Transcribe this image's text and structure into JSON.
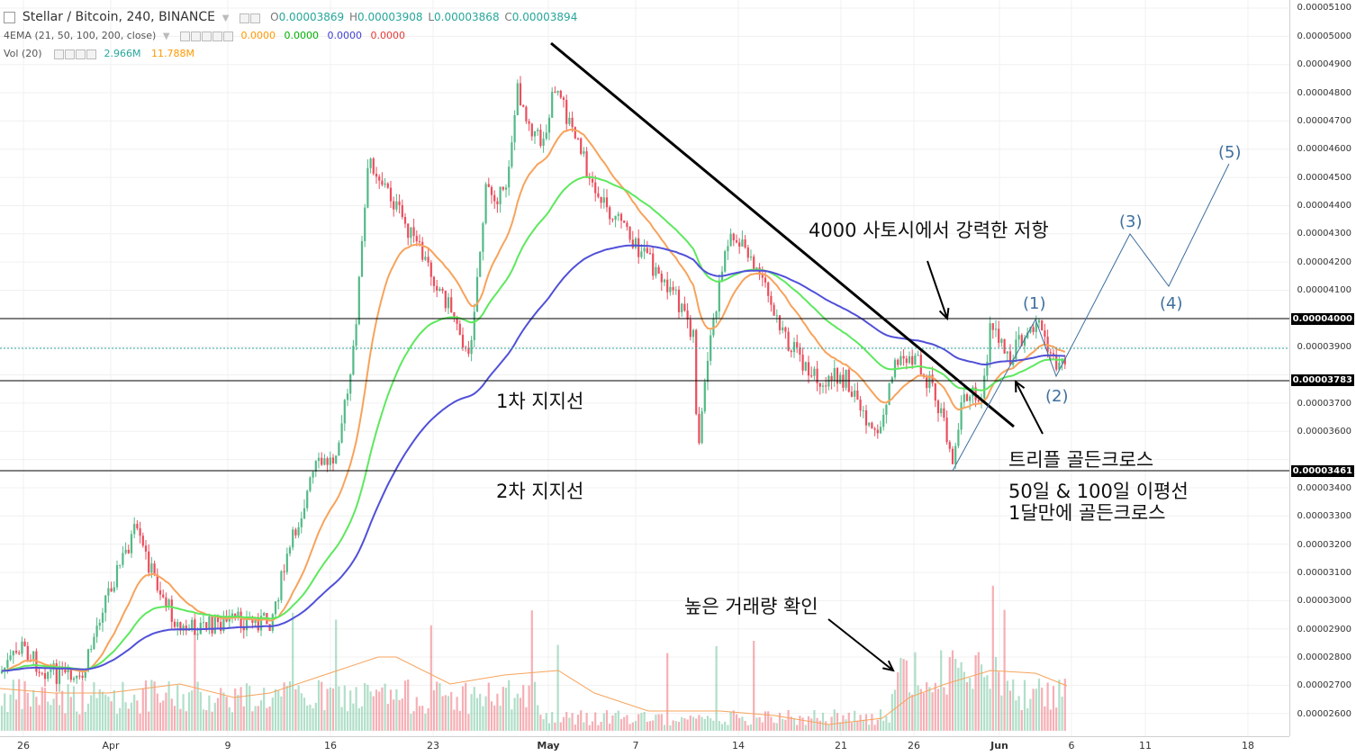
{
  "legend": {
    "symbol": "Stellar / Bitcoin, 240, BINANCE",
    "ohlc": [
      {
        "k": "O",
        "v": "0.00003869"
      },
      {
        "k": "H",
        "v": "0.00003908"
      },
      {
        "k": "L",
        "v": "0.00003868"
      },
      {
        "k": "C",
        "v": "0.00003894"
      }
    ],
    "ema": {
      "name": "4EMA (21, 50, 100, 200, close)",
      "values": [
        "0.0000",
        "0.0000",
        "0.0000",
        "0.0000"
      ],
      "colors": [
        "#ff9800",
        "#00c000",
        "#3f3fd0",
        "#e53935"
      ]
    },
    "vol": {
      "name": "Vol (20)",
      "values": [
        "2.966M",
        "11.788M"
      ],
      "colors": [
        "#26a69a",
        "#ff9800"
      ]
    }
  },
  "annotations": {
    "resistance": "4000 사토시에서 강력한 저항",
    "support1": "1차 지지선",
    "support2": "2차 지지선",
    "triple": "트리플 골든크로스",
    "ema_cross_line1": "50일 & 100일 이평선",
    "ema_cross_line2": "1달만에 골든크로스",
    "volume": "높은 거래량 확인"
  },
  "waves": [
    "(1)",
    "(2)",
    "(3)",
    "(4)",
    "(5)"
  ],
  "price_axis": {
    "ticks": [
      "0.00005100",
      "0.00005000",
      "0.00004900",
      "0.00004800",
      "0.00004700",
      "0.00004600",
      "0.00004500",
      "0.00004400",
      "0.00004300",
      "0.00004200",
      "0.00004100",
      "0.00003900",
      "0.00003700",
      "0.00003600",
      "0.00003400",
      "0.00003300",
      "0.00003200",
      "0.00003100",
      "0.00003000",
      "0.00002900",
      "0.00002800",
      "0.00002700",
      "0.00002600"
    ],
    "price_labels": [
      "0.00004000",
      "0.00003783",
      "0.00003461"
    ]
  },
  "time_axis": [
    "26",
    "Apr",
    "9",
    "16",
    "23",
    "May",
    "7",
    "14",
    "21",
    "26",
    "Jun",
    "6",
    "11",
    "18"
  ],
  "colors": {
    "up": "#53b987",
    "down": "#eb4d5c",
    "ema21": "#f7a35c",
    "ema50": "#5ee85e",
    "ema100": "#5050d8",
    "trend": "#000000",
    "wave": "#3e6f9e"
  }
}
